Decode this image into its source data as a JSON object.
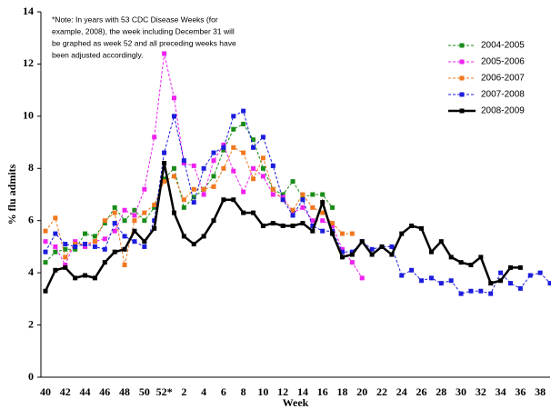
{
  "chart_data": {
    "type": "line",
    "y_label": "% flu admits",
    "x_label": "Week",
    "annotation": [
      "*Note: In years with 53 CDC Disease Weeks (for",
      "example, 2008), the week including December 31 will",
      "be graphed as week 52 and all preceding weeks have",
      "been adjusted accordingly."
    ],
    "categories": [
      "40",
      null,
      "42",
      null,
      "44",
      null,
      "46",
      null,
      "48",
      null,
      "50",
      null,
      "52*",
      null,
      "2",
      null,
      "4",
      null,
      "6",
      null,
      "8",
      null,
      "10",
      null,
      "12",
      null,
      "14",
      null,
      "16",
      null,
      "18",
      null,
      "20",
      null,
      "22",
      null,
      "24",
      null,
      "26",
      null,
      "28",
      null,
      "30",
      null,
      "32",
      null,
      "34",
      null,
      "36",
      null,
      "38",
      null
    ],
    "ylim": [
      0,
      14
    ],
    "yticks": [
      0,
      2,
      4,
      6,
      8,
      10,
      12,
      14
    ],
    "grid": false,
    "legend": "upper right",
    "series": [
      {
        "name": "2004-2005",
        "color": "#1a8c1a",
        "line_style": "dashed",
        "values": [
          4.4,
          4.8,
          4.9,
          4.9,
          5.5,
          5.4,
          5.9,
          6.5,
          6.0,
          6.4,
          6.0,
          6.5,
          7.6,
          8.0,
          6.5,
          6.9,
          7.2,
          7.7,
          8.7,
          9.5,
          9.7,
          9.1,
          8.0,
          7.2,
          7.0,
          7.5,
          6.9,
          7.0,
          7.0,
          6.5,
          null,
          null,
          null,
          null,
          null,
          null,
          null,
          null,
          null,
          null,
          null,
          null,
          null,
          null,
          null,
          null,
          null,
          null,
          null,
          null,
          null,
          null
        ]
      },
      {
        "name": "2005-2006",
        "color": "#ee22ee",
        "line_style": "dashed",
        "values": [
          5.2,
          5.0,
          4.3,
          5.2,
          5.0,
          5.2,
          5.3,
          5.6,
          6.4,
          6.2,
          7.2,
          9.2,
          12.4,
          10.7,
          8.2,
          8.1,
          7.0,
          8.3,
          8.9,
          7.9,
          7.1,
          8.0,
          7.7,
          7.0,
          6.9,
          6.3,
          6.5,
          6.0,
          6.0,
          5.8,
          4.9,
          4.4,
          3.8,
          null,
          null,
          null,
          null,
          null,
          null,
          null,
          null,
          null,
          null,
          null,
          null,
          null,
          null,
          null,
          null,
          null,
          null,
          null
        ]
      },
      {
        "name": "2006-2007",
        "color": "#f07820",
        "line_style": "dashed",
        "values": [
          5.6,
          6.1,
          4.6,
          5.1,
          5.1,
          5.2,
          6.0,
          6.3,
          4.3,
          6.0,
          6.3,
          6.6,
          7.5,
          7.7,
          6.8,
          7.2,
          7.2,
          7.3,
          8.0,
          8.8,
          8.6,
          7.6,
          8.4,
          7.2,
          6.8,
          6.4,
          7.0,
          6.5,
          6.3,
          5.9,
          5.5,
          5.5,
          null,
          null,
          null,
          null,
          null,
          null,
          null,
          null,
          null,
          null,
          null,
          null,
          null,
          null,
          null,
          null,
          null,
          null,
          null,
          null
        ]
      },
      {
        "name": "2007-2008",
        "color": "#1c1cdc",
        "line_style": "dashed",
        "values": [
          4.8,
          5.5,
          5.1,
          5.0,
          5.1,
          5.0,
          4.9,
          5.9,
          5.4,
          5.2,
          5.0,
          6.0,
          8.6,
          10.0,
          8.3,
          6.7,
          8.0,
          8.6,
          8.8,
          10.0,
          10.2,
          8.8,
          9.2,
          8.1,
          6.8,
          6.2,
          6.8,
          5.8,
          5.6,
          5.6,
          4.8,
          4.8,
          5.2,
          4.9,
          5.0,
          5.0,
          3.9,
          4.1,
          3.7,
          3.8,
          3.6,
          3.7,
          3.2,
          3.3,
          3.3,
          3.2,
          4.0,
          3.6,
          3.4,
          3.9,
          4.0,
          3.6
        ]
      },
      {
        "name": "2008-2009",
        "color": "#000000",
        "line_style": "solid",
        "values": [
          3.3,
          4.1,
          4.2,
          3.8,
          3.9,
          3.8,
          4.4,
          4.8,
          4.9,
          5.6,
          5.2,
          5.7,
          8.2,
          6.3,
          5.4,
          5.1,
          5.4,
          6.0,
          6.8,
          6.8,
          6.3,
          6.3,
          5.8,
          5.9,
          5.8,
          5.8,
          5.9,
          5.6,
          6.7,
          5.5,
          4.6,
          4.7,
          5.2,
          4.7,
          5.0,
          4.7,
          5.5,
          5.8,
          5.7,
          4.8,
          5.2,
          4.6,
          4.4,
          4.3,
          4.6,
          3.6,
          3.7,
          4.2,
          4.2,
          null,
          null,
          null
        ]
      }
    ]
  }
}
